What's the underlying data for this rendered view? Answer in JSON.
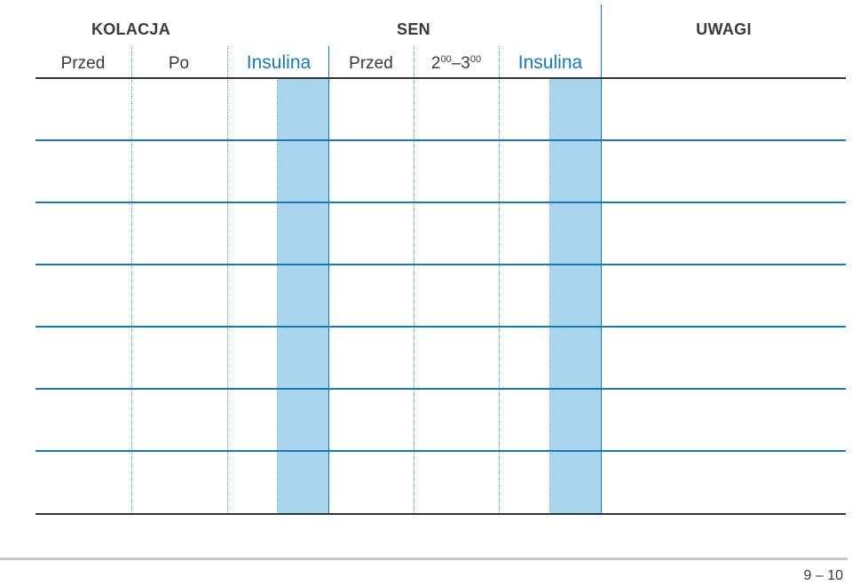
{
  "headers": {
    "kolacja": "KOLACJA",
    "sen": "SEN",
    "uwagi": "UWAGI"
  },
  "columns": {
    "przed_1": "Przed",
    "po": "Po",
    "insulina_1": "Insulina",
    "przed_2": "Przed",
    "time_start_hour": "2",
    "time_start_min": "00",
    "time_dash": "–",
    "time_end_hour": "3",
    "time_end_min": "00",
    "insulina_2": "Insulina"
  },
  "footer": {
    "page_numbers": "9 – 10"
  },
  "colors": {
    "rule_blue": "#1a78b8",
    "insulin_fill": "#a9d5ef",
    "dotted_blue": "#5aa8d8",
    "dark_rule": "#333333",
    "footer_rule": "#c8c8c8"
  }
}
